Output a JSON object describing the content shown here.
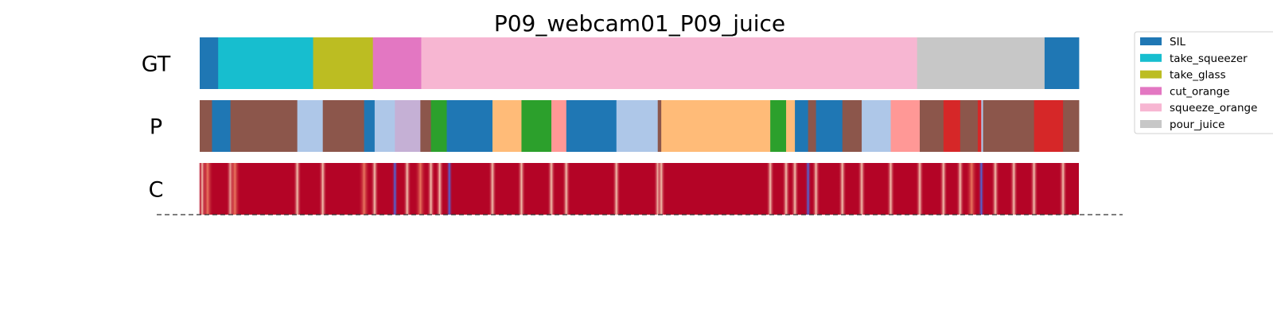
{
  "chart_data": {
    "type": "segmentation",
    "title": "P09_webcam01_P09_juice",
    "x_range": [
      0,
      1
    ],
    "rows": [
      {
        "label": "GT",
        "segments": [
          {
            "start": 0.0,
            "end": 0.021,
            "class": "SIL"
          },
          {
            "start": 0.021,
            "end": 0.129,
            "class": "take_squeezer"
          },
          {
            "start": 0.129,
            "end": 0.197,
            "class": "take_glass"
          },
          {
            "start": 0.197,
            "end": 0.252,
            "class": "cut_orange"
          },
          {
            "start": 0.252,
            "end": 0.816,
            "class": "squeeze_orange"
          },
          {
            "start": 0.816,
            "end": 0.961,
            "class": "pour_juice"
          },
          {
            "start": 0.961,
            "end": 1.0,
            "class": "SIL"
          }
        ]
      },
      {
        "label": "P",
        "segments": [
          {
            "start": 0.0,
            "end": 0.014,
            "color": "#8c564b"
          },
          {
            "start": 0.014,
            "end": 0.035,
            "color": "#1f77b4"
          },
          {
            "start": 0.035,
            "end": 0.111,
            "color": "#8c564b"
          },
          {
            "start": 0.111,
            "end": 0.14,
            "color": "#aec7e8"
          },
          {
            "start": 0.14,
            "end": 0.187,
            "color": "#8c564b"
          },
          {
            "start": 0.187,
            "end": 0.199,
            "color": "#1f77b4"
          },
          {
            "start": 0.199,
            "end": 0.222,
            "color": "#aec7e8"
          },
          {
            "start": 0.222,
            "end": 0.251,
            "color": "#c5b0d5"
          },
          {
            "start": 0.251,
            "end": 0.263,
            "color": "#8c564b"
          },
          {
            "start": 0.263,
            "end": 0.281,
            "color": "#2ca02c"
          },
          {
            "start": 0.281,
            "end": 0.333,
            "color": "#1f77b4"
          },
          {
            "start": 0.333,
            "end": 0.366,
            "color": "#ffbb78"
          },
          {
            "start": 0.366,
            "end": 0.4,
            "color": "#2ca02c"
          },
          {
            "start": 0.4,
            "end": 0.417,
            "color": "#ff9896"
          },
          {
            "start": 0.417,
            "end": 0.474,
            "color": "#1f77b4"
          },
          {
            "start": 0.474,
            "end": 0.521,
            "color": "#aec7e8"
          },
          {
            "start": 0.521,
            "end": 0.525,
            "color": "#8c564b"
          },
          {
            "start": 0.525,
            "end": 0.649,
            "color": "#ffbb78"
          },
          {
            "start": 0.649,
            "end": 0.667,
            "color": "#2ca02c"
          },
          {
            "start": 0.667,
            "end": 0.677,
            "color": "#ffbb78"
          },
          {
            "start": 0.677,
            "end": 0.692,
            "color": "#1f77b4"
          },
          {
            "start": 0.692,
            "end": 0.701,
            "color": "#8c564b"
          },
          {
            "start": 0.701,
            "end": 0.731,
            "color": "#1f77b4"
          },
          {
            "start": 0.731,
            "end": 0.753,
            "color": "#8c564b"
          },
          {
            "start": 0.753,
            "end": 0.786,
            "color": "#aec7e8"
          },
          {
            "start": 0.786,
            "end": 0.819,
            "color": "#ff9896"
          },
          {
            "start": 0.819,
            "end": 0.846,
            "color": "#8c564b"
          },
          {
            "start": 0.846,
            "end": 0.865,
            "color": "#d62728"
          },
          {
            "start": 0.865,
            "end": 0.885,
            "color": "#8c564b"
          },
          {
            "start": 0.885,
            "end": 0.889,
            "color": "#d62728"
          },
          {
            "start": 0.889,
            "end": 0.891,
            "color": "#aec7e8"
          },
          {
            "start": 0.891,
            "end": 0.949,
            "color": "#8c564b"
          },
          {
            "start": 0.949,
            "end": 0.982,
            "color": "#d62728"
          },
          {
            "start": 0.982,
            "end": 1.0,
            "color": "#8c564b"
          }
        ]
      },
      {
        "label": "C",
        "base_color": "#b40426",
        "confidence_dips": [
          {
            "at": 0.003,
            "level": "light"
          },
          {
            "at": 0.009,
            "level": "mid"
          },
          {
            "at": 0.035,
            "level": "light"
          },
          {
            "at": 0.04,
            "level": "mid"
          },
          {
            "at": 0.111,
            "level": "light"
          },
          {
            "at": 0.14,
            "level": "light"
          },
          {
            "at": 0.187,
            "level": "mid"
          },
          {
            "at": 0.199,
            "level": "light"
          },
          {
            "at": 0.222,
            "level": "blue"
          },
          {
            "at": 0.236,
            "level": "light"
          },
          {
            "at": 0.251,
            "level": "mid"
          },
          {
            "at": 0.263,
            "level": "light"
          },
          {
            "at": 0.273,
            "level": "light"
          },
          {
            "at": 0.284,
            "level": "blue"
          },
          {
            "at": 0.333,
            "level": "light"
          },
          {
            "at": 0.366,
            "level": "light"
          },
          {
            "at": 0.4,
            "level": "light"
          },
          {
            "at": 0.417,
            "level": "light"
          },
          {
            "at": 0.474,
            "level": "light"
          },
          {
            "at": 0.521,
            "level": "light"
          },
          {
            "at": 0.525,
            "level": "light"
          },
          {
            "at": 0.649,
            "level": "light"
          },
          {
            "at": 0.667,
            "level": "light"
          },
          {
            "at": 0.677,
            "level": "light"
          },
          {
            "at": 0.692,
            "level": "blue"
          },
          {
            "at": 0.701,
            "level": "light"
          },
          {
            "at": 0.731,
            "level": "light"
          },
          {
            "at": 0.753,
            "level": "light"
          },
          {
            "at": 0.786,
            "level": "light"
          },
          {
            "at": 0.819,
            "level": "light"
          },
          {
            "at": 0.846,
            "level": "light"
          },
          {
            "at": 0.865,
            "level": "light"
          },
          {
            "at": 0.878,
            "level": "mid"
          },
          {
            "at": 0.889,
            "level": "blue"
          },
          {
            "at": 0.905,
            "level": "light"
          },
          {
            "at": 0.926,
            "level": "light"
          },
          {
            "at": 0.949,
            "level": "light"
          },
          {
            "at": 0.982,
            "level": "light"
          }
        ]
      }
    ],
    "legend": {
      "position": "top-right",
      "entries": [
        {
          "name": "SIL",
          "color": "#1f77b4"
        },
        {
          "name": "take_squeezer",
          "color": "#17becf"
        },
        {
          "name": "take_glass",
          "color": "#bcbd22"
        },
        {
          "name": "cut_orange",
          "color": "#e377c2"
        },
        {
          "name": "squeeze_orange",
          "color": "#f7b6d2"
        },
        {
          "name": "pour_juice",
          "color": "#c7c7c7"
        }
      ]
    },
    "baseline": {
      "style": "dashed"
    },
    "grid": false
  }
}
